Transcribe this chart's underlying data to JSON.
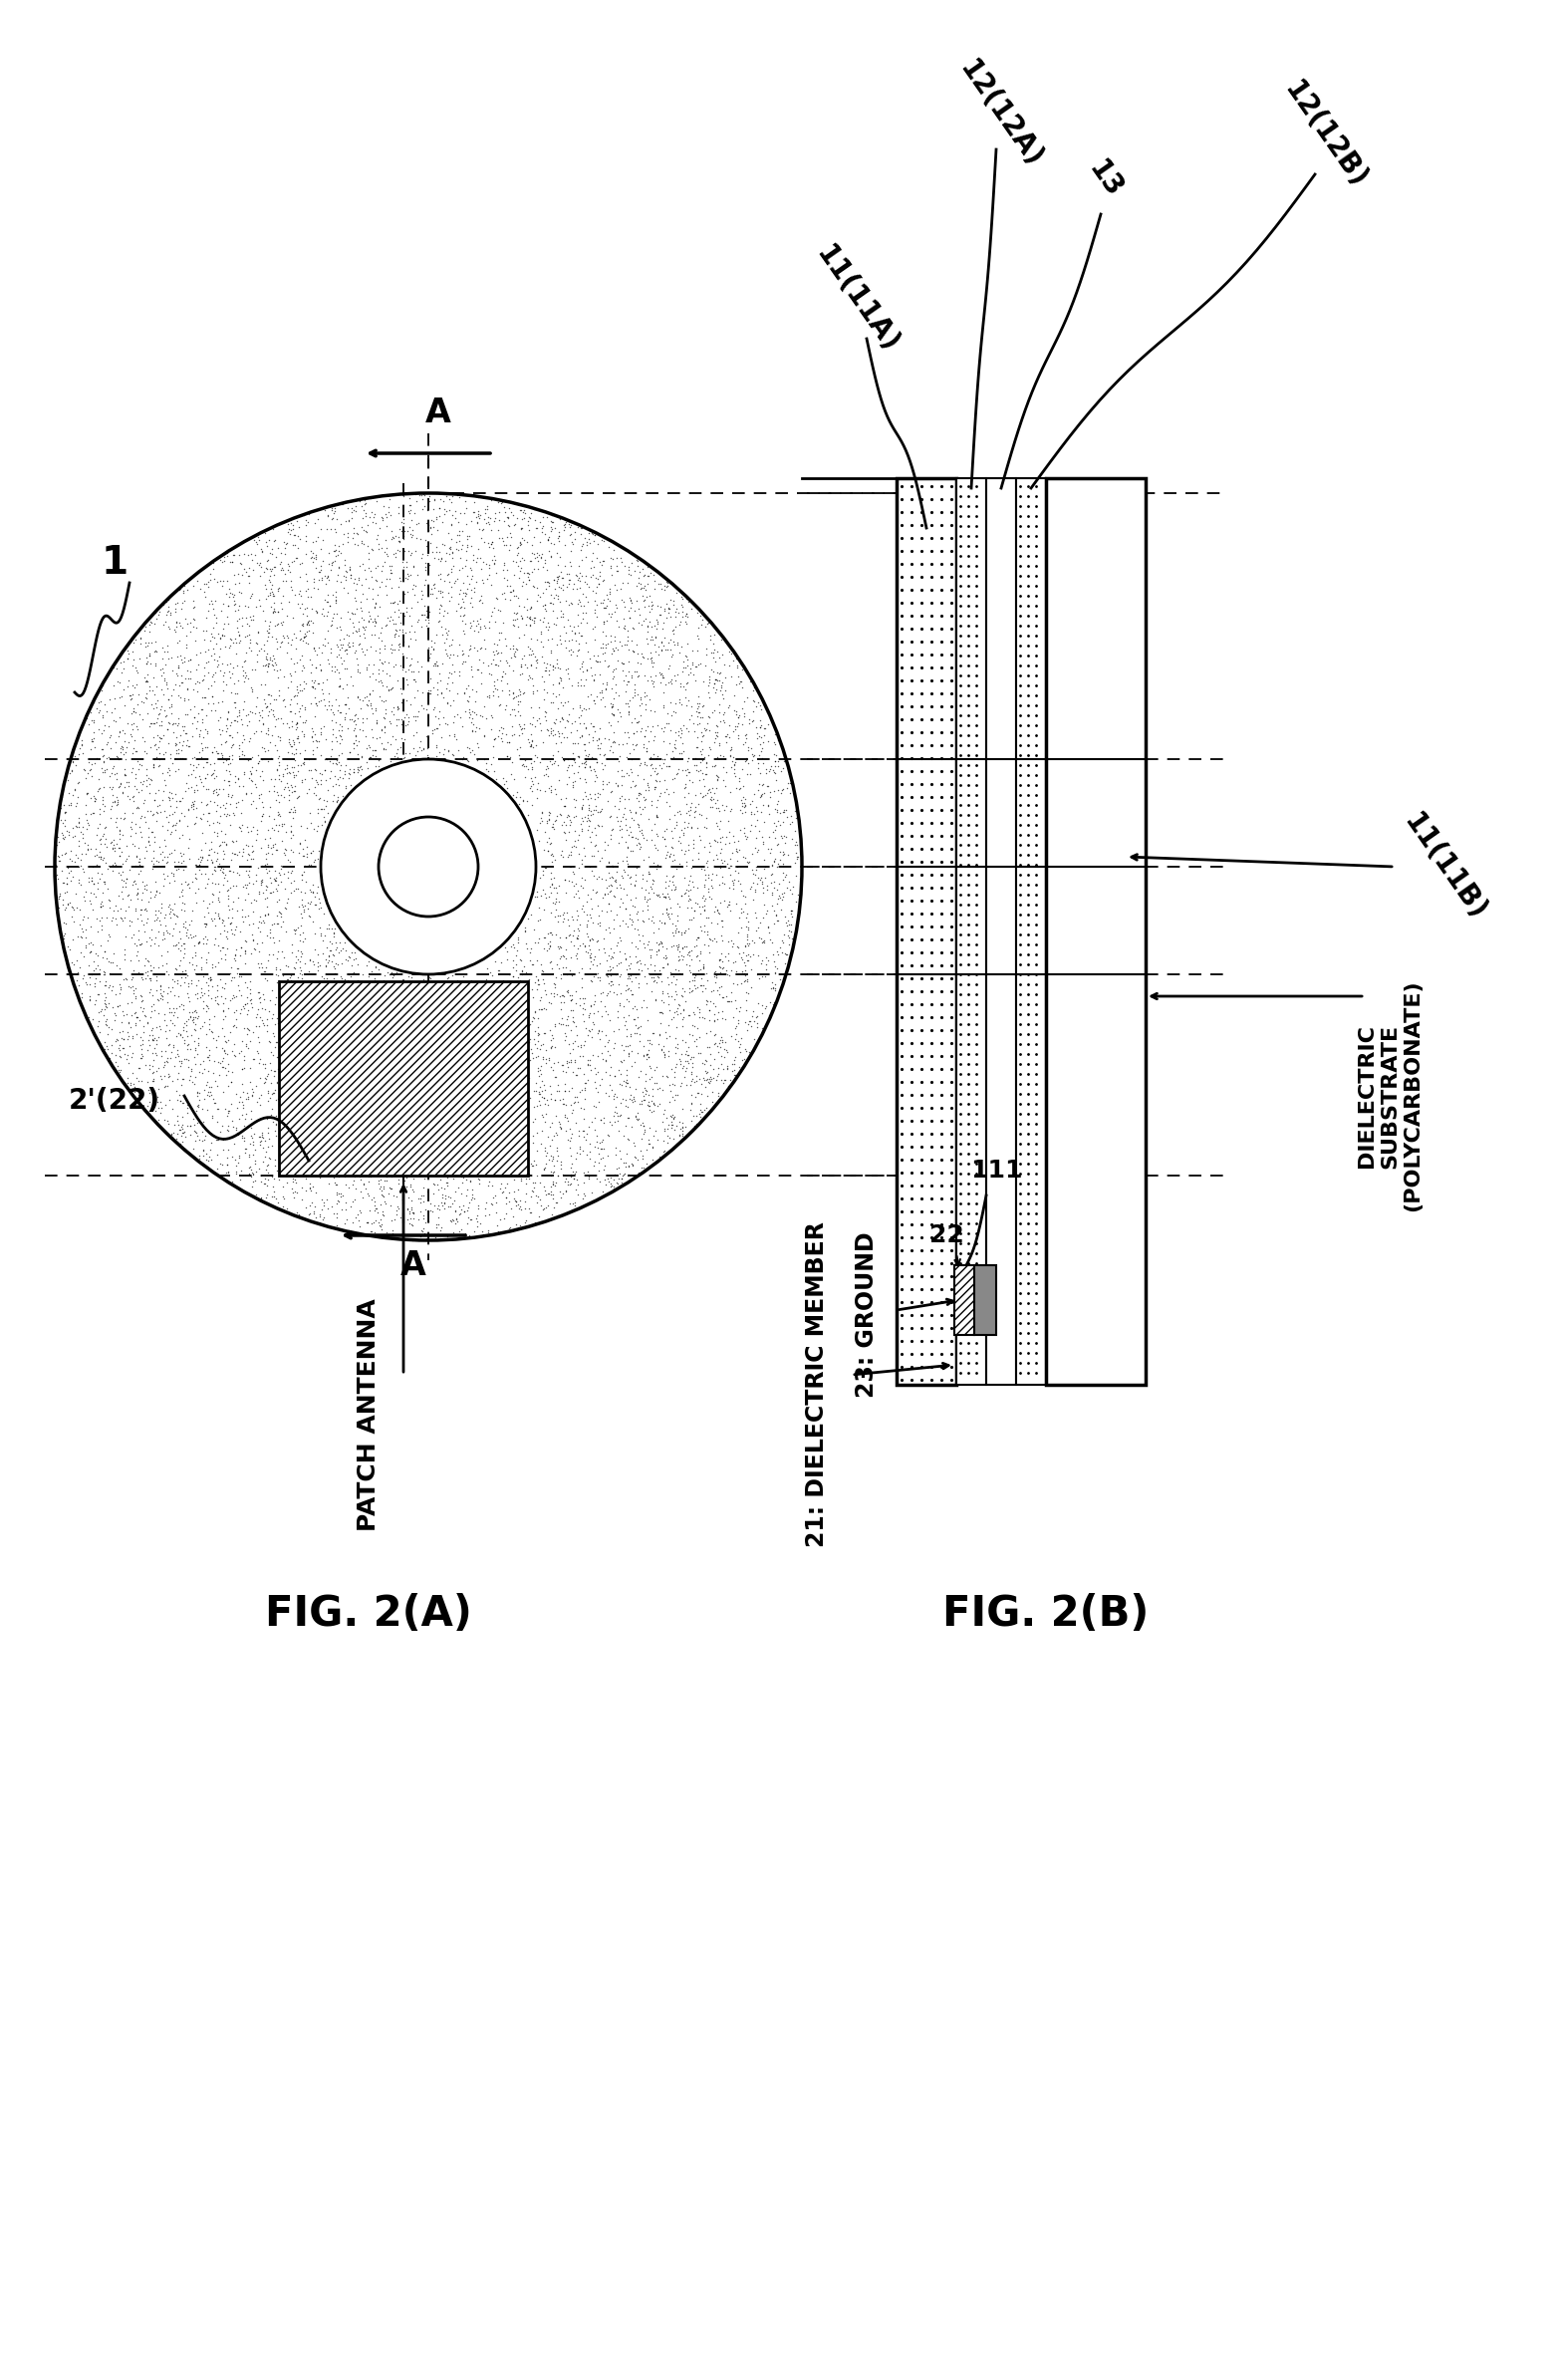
{
  "fig_title_A": "FIG. 2(A)",
  "fig_title_B": "FIG. 2(B)",
  "label_1": "1",
  "label_2prime_22": "2'(22)",
  "label_patch_antenna": "PATCH ANTENNA",
  "label_A": "A",
  "label_11_11A": "11(11A)",
  "label_12_12A": "12(12A)",
  "label_13": "13",
  "label_12_12B": "12(12B)",
  "label_111": "111",
  "label_22": "22",
  "label_21": "21: DIELECTRIC MEMBER",
  "label_23": "23: GROUND",
  "label_dielectric_substrate": "DIELECTRIC\nSUBSTRATE\n(POLYCARBONATE)",
  "label_11_11B": "11(11B)",
  "bg_color": "#ffffff",
  "line_color": "#000000"
}
